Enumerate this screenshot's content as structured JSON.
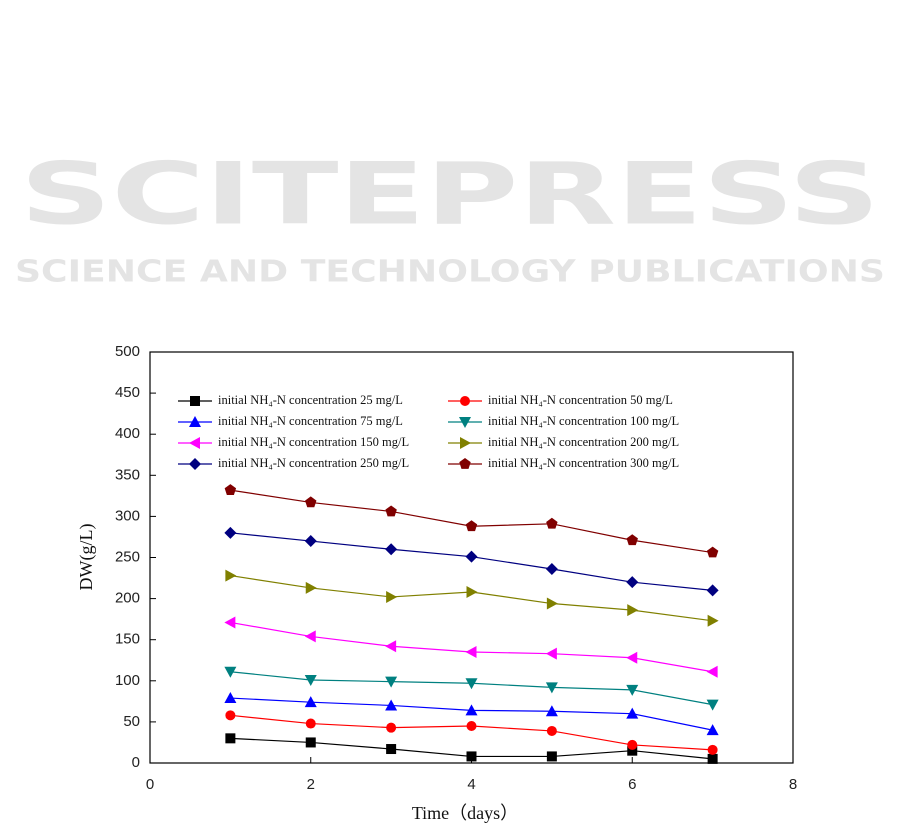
{
  "watermark": {
    "title": "SCITEPRESS",
    "subtitle": "SCIENCE AND TECHNOLOGY PUBLICATIONS"
  },
  "chart_data": {
    "type": "line",
    "x_label": "Time（days）",
    "y_label": "DW(g/L)",
    "x": [
      1,
      2,
      3,
      4,
      5,
      6,
      7
    ],
    "xlim": [
      0,
      8
    ],
    "xticks": [
      0,
      2,
      4,
      6,
      8
    ],
    "ylim": [
      0,
      500
    ],
    "yticks": [
      0,
      50,
      100,
      150,
      200,
      250,
      300,
      350,
      400,
      450,
      500
    ],
    "series": [
      {
        "name": "initial NH₄-N concentration 25 mg/L",
        "color": "#000000",
        "marker": "square",
        "values": [
          30,
          25,
          17,
          8,
          8,
          15,
          5
        ]
      },
      {
        "name": "initial NH₄-N concentration 50 mg/L",
        "color": "#ff0000",
        "marker": "circle",
        "values": [
          58,
          48,
          43,
          45,
          39,
          22,
          16
        ]
      },
      {
        "name": "initial NH₄-N concentration 75 mg/L",
        "color": "#0000ff",
        "marker": "triangle-up",
        "values": [
          79,
          74,
          70,
          64,
          63,
          60,
          40
        ]
      },
      {
        "name": "initial NH₄-N concentration 100 mg/L",
        "color": "#008080",
        "marker": "triangle-down",
        "values": [
          111,
          101,
          99,
          97,
          92,
          89,
          71
        ]
      },
      {
        "name": "initial NH₄-N concentration 150 mg/L",
        "color": "#ff00ff",
        "marker": "triangle-left",
        "values": [
          171,
          154,
          142,
          135,
          133,
          128,
          111
        ]
      },
      {
        "name": "initial NH₄-N concentration 200 mg/L",
        "color": "#808000",
        "marker": "triangle-right",
        "values": [
          228,
          213,
          202,
          208,
          194,
          186,
          173
        ]
      },
      {
        "name": "initial NH₄-N concentration 250 mg/L",
        "color": "#000080",
        "marker": "diamond",
        "values": [
          280,
          270,
          260,
          251,
          236,
          220,
          210
        ]
      },
      {
        "name": "initial NH₄-N concentration 300 mg/L",
        "color": "#800000",
        "marker": "pentagon",
        "values": [
          332,
          317,
          306,
          288,
          291,
          271,
          256
        ]
      }
    ]
  }
}
